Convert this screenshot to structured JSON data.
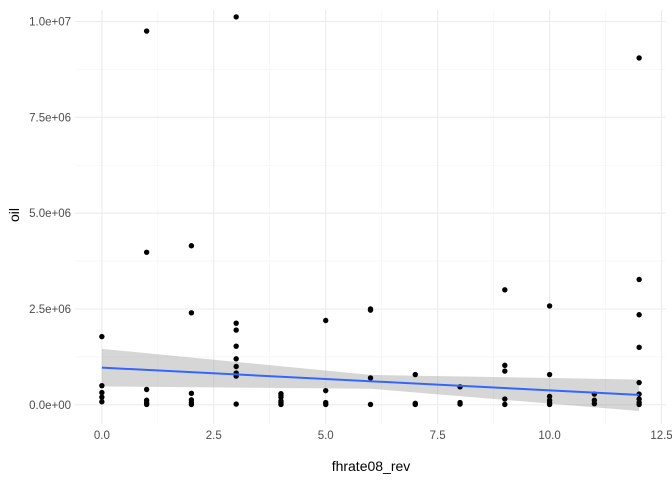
{
  "chart_data": {
    "type": "scatter",
    "xlabel": "fhrate08_rev",
    "ylabel": "oil",
    "xlim": [
      -0.6,
      12.6
    ],
    "ylim": [
      -500000,
      10300000
    ],
    "x_ticks": [
      0,
      2.5,
      5,
      7.5,
      10,
      12.5
    ],
    "x_tick_labels": [
      "0.0",
      "2.5",
      "5.0",
      "7.5",
      "10.0",
      "12.5"
    ],
    "y_ticks": [
      0,
      2500000,
      5000000,
      7500000,
      10000000
    ],
    "y_tick_labels": [
      "0.0e+00",
      "2.5e+06",
      "5.0e+06",
      "7.5e+06",
      "1.0e+07"
    ],
    "grid": true,
    "colors": {
      "points": "#000000",
      "fit_line": "#3366FF",
      "confidence_band": "#999999",
      "grid_major": "#ebebeb",
      "grid_minor": "#f3f3f3"
    },
    "points": [
      {
        "x": 0,
        "y": 1780000
      },
      {
        "x": 0,
        "y": 500000
      },
      {
        "x": 0,
        "y": 320000
      },
      {
        "x": 0,
        "y": 200000
      },
      {
        "x": 0,
        "y": 80000
      },
      {
        "x": 1,
        "y": 9750000
      },
      {
        "x": 1,
        "y": 3980000
      },
      {
        "x": 1,
        "y": 400000
      },
      {
        "x": 1,
        "y": 120000
      },
      {
        "x": 1,
        "y": 50000
      },
      {
        "x": 1,
        "y": 10000
      },
      {
        "x": 2,
        "y": 4150000
      },
      {
        "x": 2,
        "y": 2400000
      },
      {
        "x": 2,
        "y": 300000
      },
      {
        "x": 2,
        "y": 130000
      },
      {
        "x": 2,
        "y": 60000
      },
      {
        "x": 2,
        "y": 10000
      },
      {
        "x": 3,
        "y": 10120000
      },
      {
        "x": 3,
        "y": 2130000
      },
      {
        "x": 3,
        "y": 1950000
      },
      {
        "x": 3,
        "y": 1530000
      },
      {
        "x": 3,
        "y": 1200000
      },
      {
        "x": 3,
        "y": 1000000
      },
      {
        "x": 3,
        "y": 830000
      },
      {
        "x": 3,
        "y": 750000
      },
      {
        "x": 3,
        "y": 20000
      },
      {
        "x": 4,
        "y": 290000
      },
      {
        "x": 4,
        "y": 250000
      },
      {
        "x": 4,
        "y": 200000
      },
      {
        "x": 4,
        "y": 100000
      },
      {
        "x": 4,
        "y": 50000
      },
      {
        "x": 4,
        "y": 10000
      },
      {
        "x": 5,
        "y": 2200000
      },
      {
        "x": 5,
        "y": 370000
      },
      {
        "x": 5,
        "y": 60000
      },
      {
        "x": 5,
        "y": 10000
      },
      {
        "x": 6,
        "y": 2500000
      },
      {
        "x": 6,
        "y": 2470000
      },
      {
        "x": 6,
        "y": 700000
      },
      {
        "x": 6,
        "y": 10000
      },
      {
        "x": 7,
        "y": 790000
      },
      {
        "x": 7,
        "y": 40000
      },
      {
        "x": 7,
        "y": 10000
      },
      {
        "x": 8,
        "y": 470000
      },
      {
        "x": 8,
        "y": 60000
      },
      {
        "x": 8,
        "y": 20000
      },
      {
        "x": 9,
        "y": 3000000
      },
      {
        "x": 9,
        "y": 1030000
      },
      {
        "x": 9,
        "y": 880000
      },
      {
        "x": 9,
        "y": 150000
      },
      {
        "x": 9,
        "y": 10000
      },
      {
        "x": 10,
        "y": 2580000
      },
      {
        "x": 10,
        "y": 790000
      },
      {
        "x": 10,
        "y": 220000
      },
      {
        "x": 10,
        "y": 120000
      },
      {
        "x": 10,
        "y": 50000
      },
      {
        "x": 10,
        "y": 10000
      },
      {
        "x": 11,
        "y": 280000
      },
      {
        "x": 11,
        "y": 120000
      },
      {
        "x": 11,
        "y": 30000
      },
      {
        "x": 12,
        "y": 9050000
      },
      {
        "x": 12,
        "y": 3270000
      },
      {
        "x": 12,
        "y": 2350000
      },
      {
        "x": 12,
        "y": 1500000
      },
      {
        "x": 12,
        "y": 580000
      },
      {
        "x": 12,
        "y": 280000
      },
      {
        "x": 12,
        "y": 150000
      },
      {
        "x": 12,
        "y": 60000
      },
      {
        "x": 12,
        "y": 10000
      }
    ],
    "fit": {
      "method": "lm",
      "x_range": [
        0,
        12
      ],
      "y_at_start": 970000,
      "y_at_end": 260000,
      "ci_lower_at_start": 480000,
      "ci_upper_at_start": 1460000,
      "ci_lower_at_mid": 420000,
      "ci_upper_at_mid": 780000,
      "ci_lower_at_end": -160000,
      "ci_upper_at_end": 660000
    }
  }
}
